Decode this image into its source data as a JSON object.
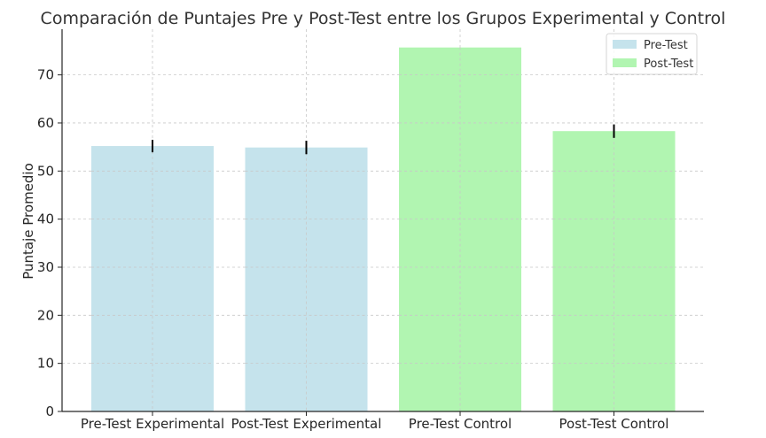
{
  "chart_data": {
    "type": "bar",
    "title": "Comparación de Puntajes Pre y Post-Test entre los Grupos Experimental y Control",
    "xlabel": "",
    "ylabel": "Puntaje Promedio",
    "categories": [
      "Pre-Test Experimental",
      "Post-Test Experimental",
      "Pre-Test Control",
      "Post-Test Control"
    ],
    "values": [
      55.2,
      54.9,
      75.7,
      58.3
    ],
    "error": [
      1.3,
      1.4,
      0,
      1.4
    ],
    "bar_colors": [
      "#c5e3ec",
      "#c5e3ec",
      "#b1f5b1",
      "#b1f5b1"
    ],
    "yticks": [
      0,
      10,
      20,
      30,
      40,
      50,
      60,
      70
    ],
    "ylim": [
      0,
      79.5
    ],
    "grid": true,
    "legend": {
      "placement": "top-right",
      "entries": [
        {
          "label": "Pre-Test",
          "color": "#c5e3ec"
        },
        {
          "label": "Post-Test",
          "color": "#b1f5b1"
        }
      ]
    }
  }
}
